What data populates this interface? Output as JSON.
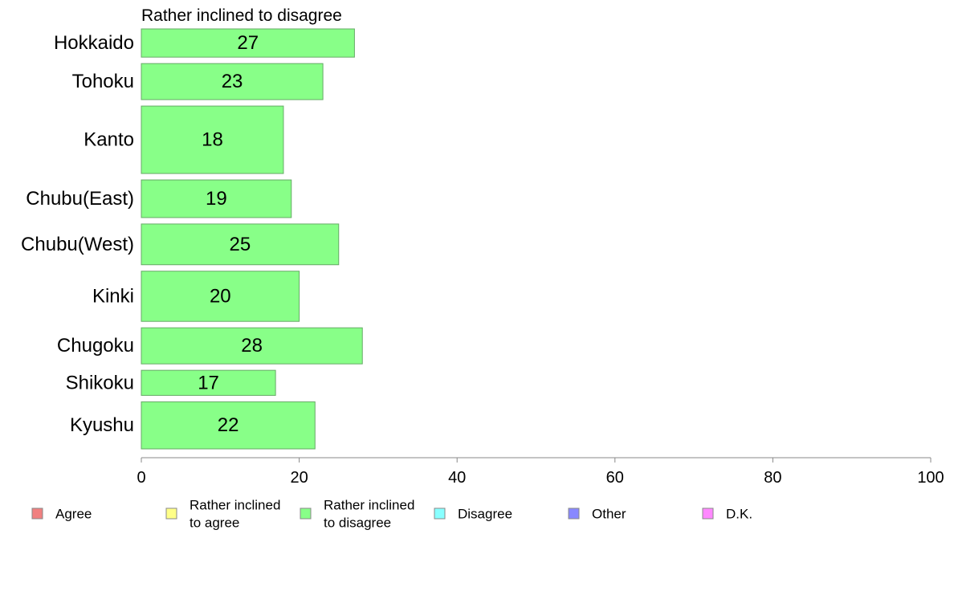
{
  "chart_data": {
    "type": "bar",
    "orientation": "horizontal",
    "title": "Rather inclined to disagree",
    "categories": [
      "Hokkaido",
      "Tohoku",
      "Kanto",
      "Chubu(East)",
      "Chubu(West)",
      "Kinki",
      "Chugoku",
      "Shikoku",
      "Kyushu"
    ],
    "series": [
      {
        "name": "Rather inclined to disagree",
        "values": [
          27,
          23,
          18,
          19,
          25,
          20,
          28,
          17,
          22
        ]
      }
    ],
    "relative_group_size": [
      36,
      46,
      86,
      48,
      52,
      64,
      46,
      32,
      60
    ],
    "xlim": [
      0,
      100
    ],
    "xticks": [
      0,
      20,
      40,
      60,
      80,
      100
    ],
    "xlabel": "",
    "ylabel": "",
    "grid": false,
    "legend": {
      "position": "bottom",
      "items": [
        {
          "label_lines": [
            "Agree"
          ],
          "color": "#f08080"
        },
        {
          "label_lines": [
            "Rather inclined",
            "to agree"
          ],
          "color": "#ffff88"
        },
        {
          "label_lines": [
            "Rather inclined",
            "to disagree"
          ],
          "color": "#88ff88"
        },
        {
          "label_lines": [
            "Disagree"
          ],
          "color": "#88ffff"
        },
        {
          "label_lines": [
            "Other"
          ],
          "color": "#8888ff"
        },
        {
          "label_lines": [
            "D.K."
          ],
          "color": "#ff88ff"
        }
      ]
    },
    "colors": {
      "bar": "#88ff88",
      "bar_stroke": "#66aa66",
      "axis": "#888888"
    }
  }
}
